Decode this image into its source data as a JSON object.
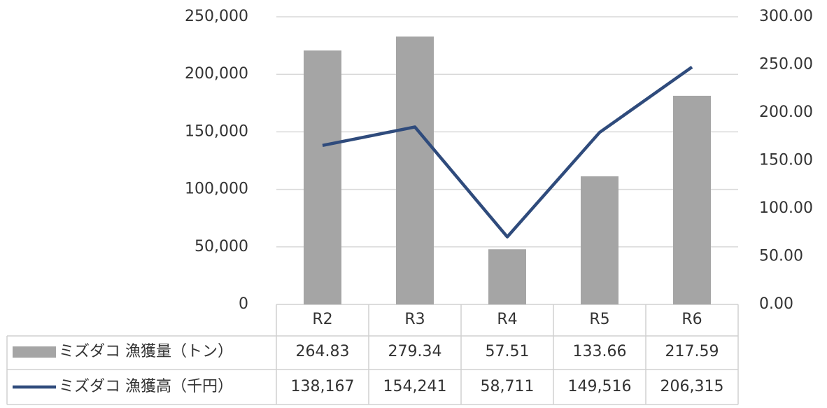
{
  "chart_data": {
    "type": "bar_line",
    "categories": [
      "R2",
      "R3",
      "R4",
      "R5",
      "R6"
    ],
    "series": [
      {
        "name": "ミズダコ 漁獲量（トン）",
        "type": "bar",
        "axis": "y2",
        "color": "#a5a5a5",
        "values": [
          264.83,
          279.34,
          57.51,
          133.66,
          217.59
        ]
      },
      {
        "name": "ミズダコ 漁獲高（千円）",
        "type": "line",
        "axis": "y",
        "color": "#2f4b7c",
        "values": [
          138167,
          154241,
          58711,
          149516,
          206315
        ],
        "value_labels": [
          "138,167",
          "154,241",
          "58,711",
          "149,516",
          "206,315"
        ]
      }
    ],
    "ylim": [
      0,
      250000
    ],
    "yticks": [
      0,
      {
        "value": 50000,
        "label": "50,000"
      },
      {
        "value": 100000,
        "label": "100,000"
      },
      {
        "value": 150000,
        "label": "150,000"
      },
      {
        "value": 200000,
        "label": "200,000"
      },
      {
        "value": 250000,
        "label": "250,000"
      }
    ],
    "y2lim": [
      0,
      300
    ],
    "y2ticks": [
      {
        "value": 0,
        "label": "0.00"
      },
      {
        "value": 50,
        "label": "50.00"
      },
      {
        "value": 100,
        "label": "100.00"
      },
      {
        "value": 150,
        "label": "150.00"
      },
      {
        "value": 200,
        "label": "200.00"
      },
      {
        "value": 250,
        "label": "250.00"
      },
      {
        "value": 300,
        "label": "300.00"
      }
    ],
    "grid": true
  }
}
